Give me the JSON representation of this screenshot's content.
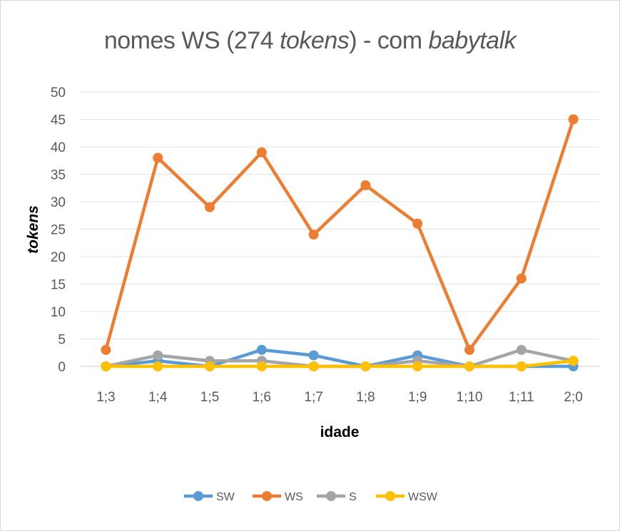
{
  "chart_data": {
    "type": "line",
    "title_parts": [
      {
        "text": "nomes WS (274 ",
        "italic": false
      },
      {
        "text": "tokens",
        "italic": true
      },
      {
        "text": ") - com ",
        "italic": false
      },
      {
        "text": "babytalk",
        "italic": true
      }
    ],
    "xlabel": "idade",
    "ylabel": "tokens",
    "categories": [
      "1;3",
      "1;4",
      "1;5",
      "1;6",
      "1;7",
      "1;8",
      "1;9",
      "1;10",
      "1;11",
      "2;0"
    ],
    "ylim": [
      0,
      50
    ],
    "yticks": [
      0,
      5,
      10,
      15,
      20,
      25,
      30,
      35,
      40,
      45,
      50
    ],
    "grid": true,
    "legend_position": "bottom",
    "series": [
      {
        "name": "SW",
        "color": "#5b9bd5",
        "values": [
          0,
          1,
          0,
          3,
          2,
          0,
          2,
          0,
          0,
          0
        ]
      },
      {
        "name": "WS",
        "color": "#ed7d31",
        "values": [
          3,
          38,
          29,
          39,
          24,
          33,
          26,
          3,
          16,
          45
        ]
      },
      {
        "name": "S",
        "color": "#a5a5a5",
        "values": [
          0,
          2,
          1,
          1,
          0,
          0,
          1,
          0,
          3,
          1
        ]
      },
      {
        "name": "WSW",
        "color": "#ffc000",
        "values": [
          0,
          0,
          0,
          0,
          0,
          0,
          0,
          0,
          0,
          1
        ]
      }
    ]
  }
}
